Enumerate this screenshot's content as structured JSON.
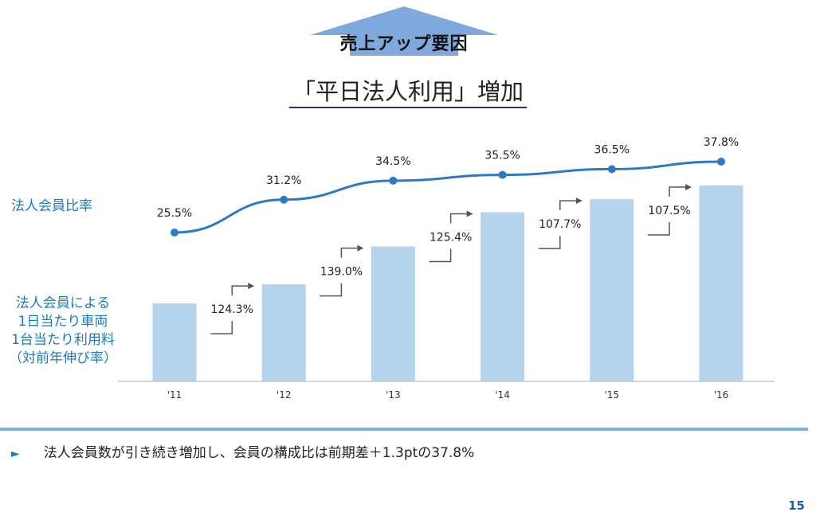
{
  "banner": {
    "label": "売上アップ要因"
  },
  "title": "「平日法人利用」増加",
  "side_labels": {
    "ratio": "法人会員比率",
    "sales": "法人会員による\n1日当たり車両\n1台当たり利用料\n（対前年伸び率）"
  },
  "chart_data": {
    "type": "bar",
    "categories": [
      "'11",
      "'12",
      "'13",
      "'14",
      "'15",
      "'16"
    ],
    "series": [
      {
        "name": "法人会員比率",
        "type": "line",
        "values": [
          25.5,
          31.2,
          34.5,
          35.5,
          36.5,
          37.8
        ],
        "labels": [
          "25.5%",
          "31.2%",
          "34.5%",
          "35.5%",
          "36.5%",
          "37.8%"
        ]
      },
      {
        "name": "法人会員による1日当たり車両1台当たり利用料（対前年伸び率）",
        "type": "bar",
        "values": [
          100,
          124.3,
          172.8,
          216.7,
          233.4,
          250.9
        ]
      }
    ],
    "growth_rates": [
      "124.3%",
      "139.0%",
      "125.4%",
      "107.7%",
      "107.5%"
    ],
    "colors": {
      "bar": "#b6d3ee",
      "line": "#2e78c6",
      "growth_arrow": "#555555"
    },
    "grid": false
  },
  "footer": {
    "bullet_marker": "►",
    "bullet": "法人会員数が引き続き増加し、会員の構成比は前期差＋1.3ptの37.8%",
    "page_number": "15"
  }
}
